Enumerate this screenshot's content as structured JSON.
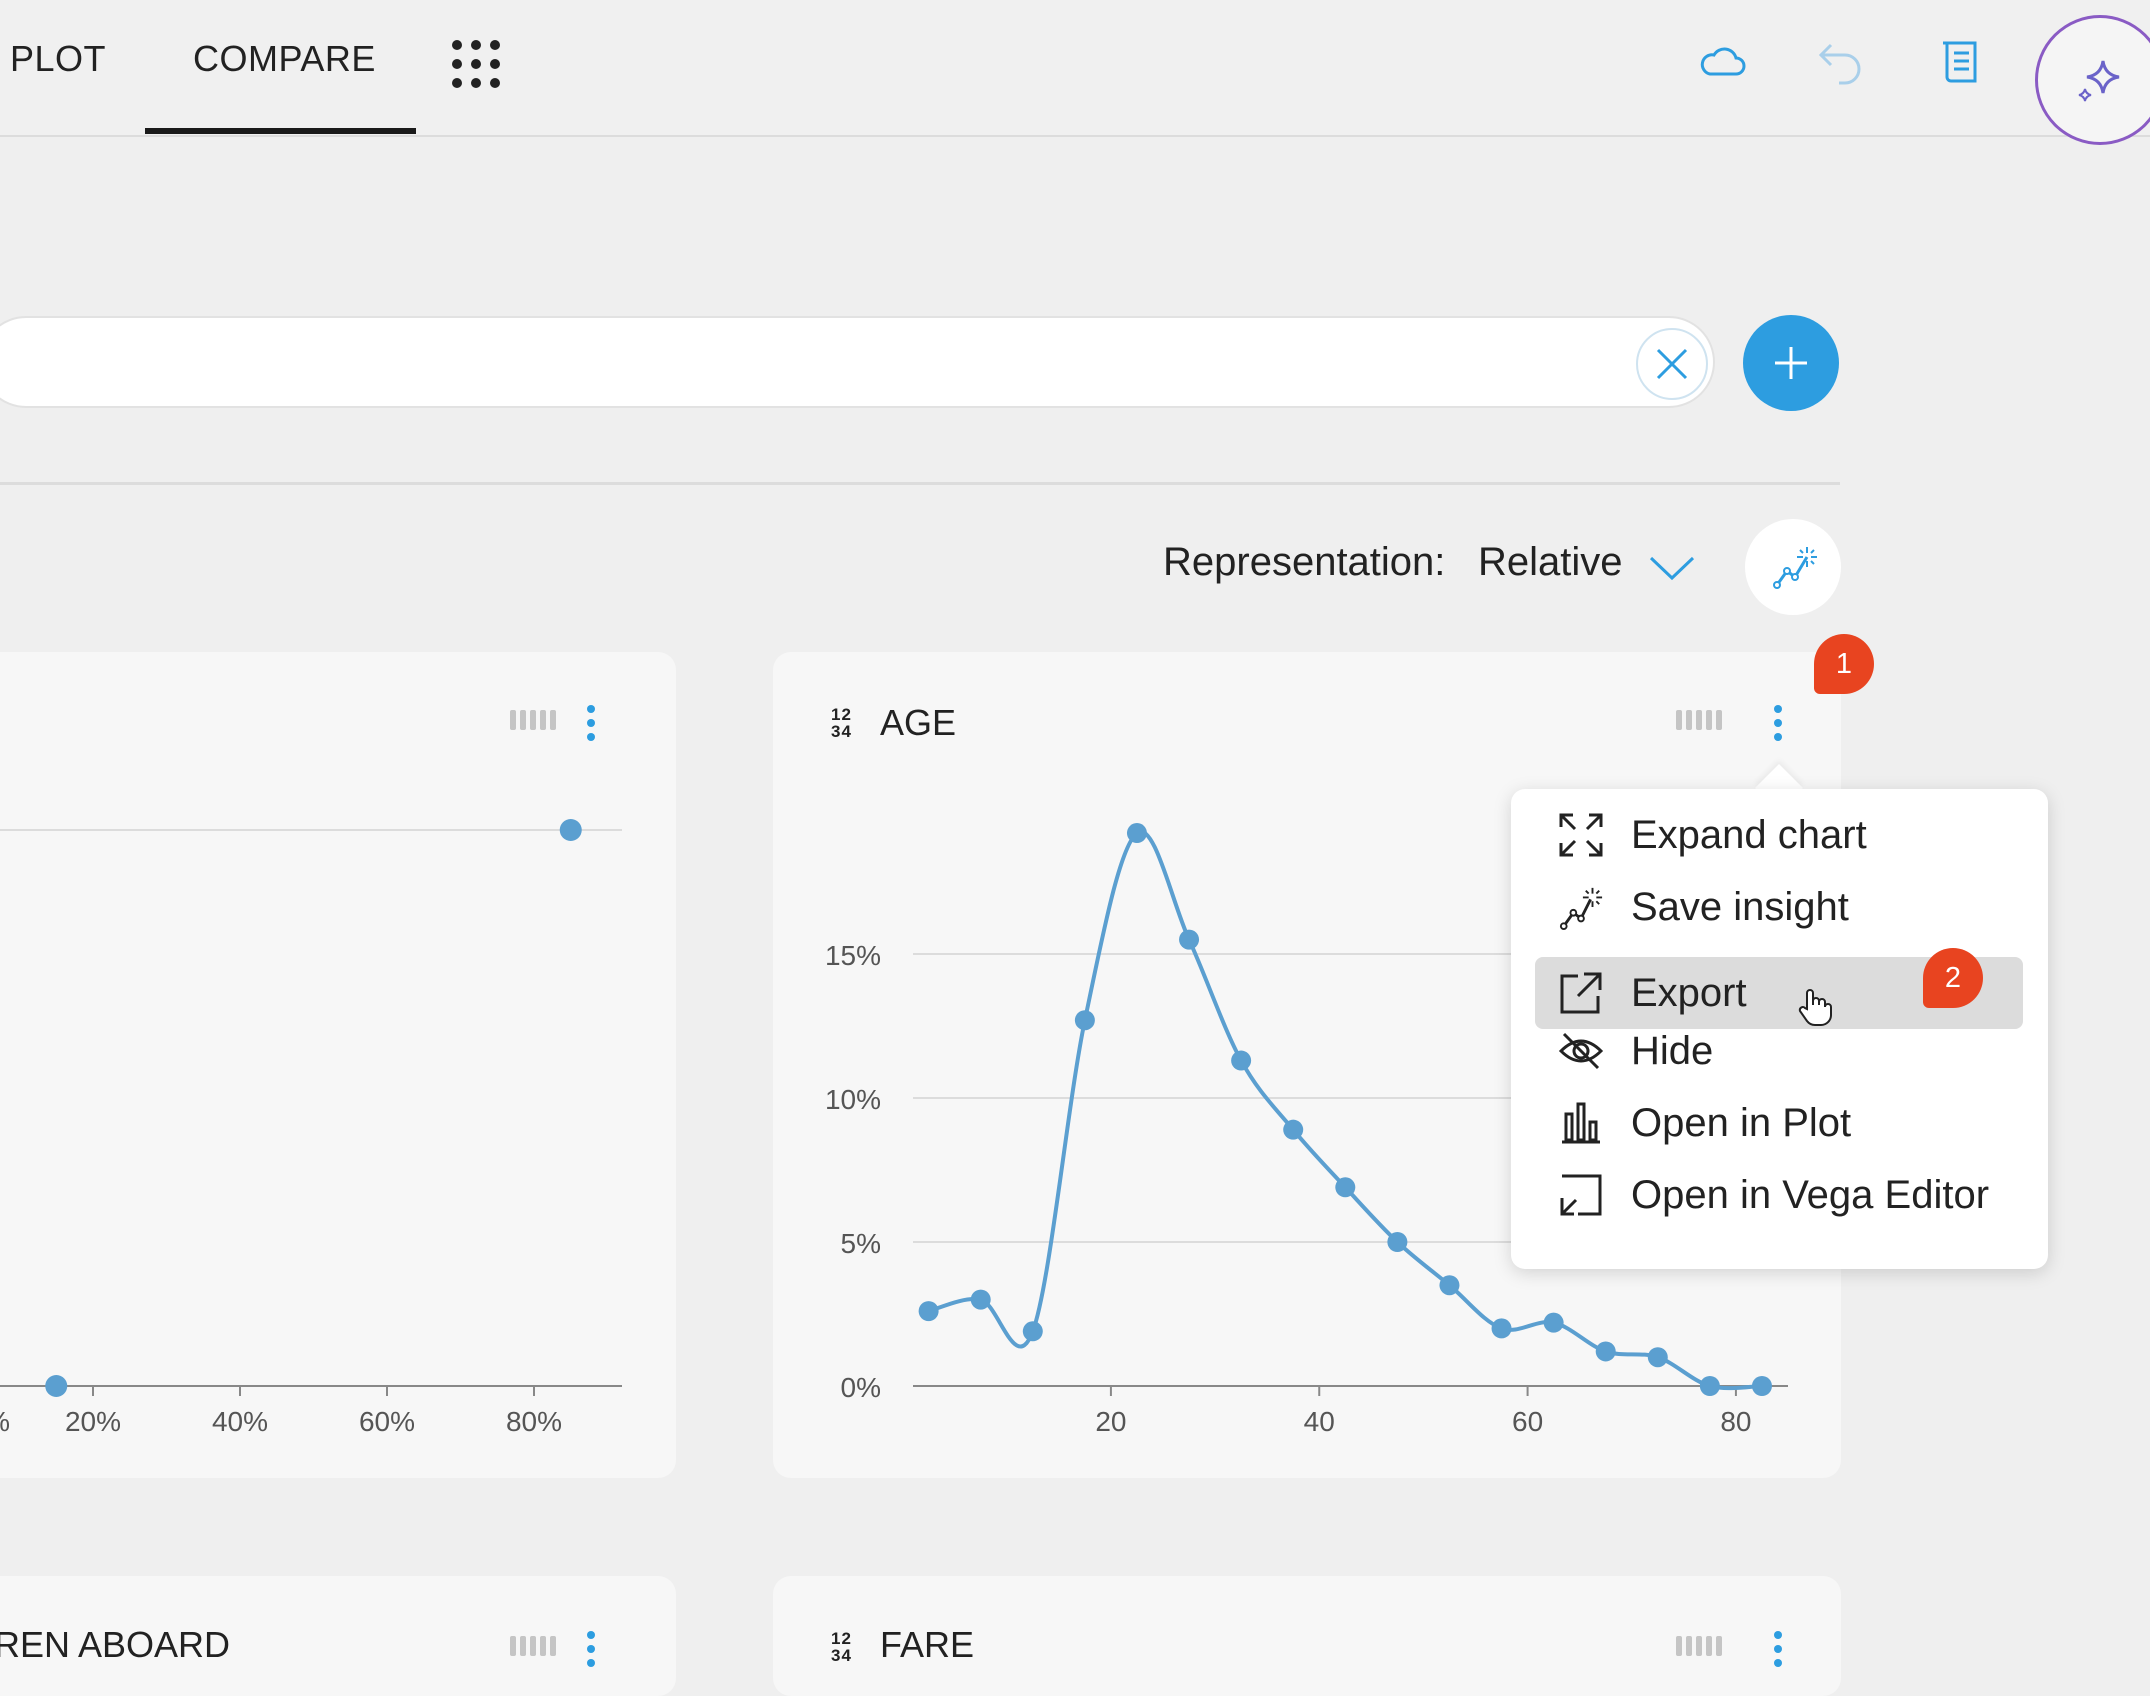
{
  "tabs": [
    {
      "label": "PLOT"
    },
    {
      "label": "COMPARE",
      "active": true
    }
  ],
  "icons": {
    "apps": "apps-grid-icon",
    "cloud": "cloud-icon",
    "undo": "undo-icon",
    "notes": "notes-icon",
    "ai": "sparkle-icon",
    "clear": "close-icon",
    "add": "plus-icon",
    "insight": "insight-icon"
  },
  "colors": {
    "accent": "#2d9de0",
    "line": "#5b9fd0",
    "badge": "#e84420",
    "ai_border": "#8a5bc4"
  },
  "representation": {
    "label": "Representation:",
    "value": "Relative"
  },
  "cards": {
    "left": {
      "title": "",
      "x_ticks": [
        "%",
        "20%",
        "40%",
        "60%",
        "80%"
      ]
    },
    "age": {
      "type_icon_top": "12",
      "type_icon_bottom": "34",
      "title": "AGE"
    },
    "bottom_left": {
      "title": "REN ABOARD"
    },
    "bottom_right": {
      "type_icon_top": "12",
      "type_icon_bottom": "34",
      "title": "FARE"
    }
  },
  "badges": {
    "first": "1",
    "second": "2"
  },
  "menu": {
    "items": [
      {
        "label": "Expand chart",
        "icon": "expand-icon"
      },
      {
        "label": "Save insight",
        "icon": "insight-icon"
      },
      {
        "label": "Export",
        "icon": "export-icon",
        "highlighted": true
      },
      {
        "label": "Hide",
        "icon": "eye-off-icon"
      },
      {
        "label": "Open in Plot",
        "icon": "bar-chart-icon"
      },
      {
        "label": "Open in Vega Editor",
        "icon": "open-external-icon"
      }
    ]
  },
  "chart_data": [
    {
      "type": "line",
      "title": "AGE",
      "x": [
        2.5,
        7.5,
        12.5,
        17.5,
        22.5,
        27.5,
        32.5,
        37.5,
        42.5,
        47.5,
        52.5,
        57.5,
        62.5,
        67.5,
        72.5,
        77.5,
        82.5
      ],
      "y": [
        2.6,
        3.0,
        1.9,
        12.7,
        19.2,
        15.5,
        11.3,
        8.9,
        6.9,
        5.0,
        3.5,
        2.0,
        2.2,
        1.2,
        1.0,
        0.0,
        0.0
      ],
      "x_ticks": [
        "20",
        "40",
        "60",
        "80"
      ],
      "y_ticks": [
        "0%",
        "5%",
        "10%",
        "15%"
      ],
      "xlim": [
        1,
        85
      ],
      "ylim": [
        0,
        20
      ],
      "grid": true
    },
    {
      "type": "scatter",
      "x_ticks": [
        "%",
        "20%",
        "40%",
        "60%",
        "80%"
      ],
      "x": [
        15,
        85
      ],
      "y": [
        0,
        1
      ],
      "grid": true
    }
  ]
}
